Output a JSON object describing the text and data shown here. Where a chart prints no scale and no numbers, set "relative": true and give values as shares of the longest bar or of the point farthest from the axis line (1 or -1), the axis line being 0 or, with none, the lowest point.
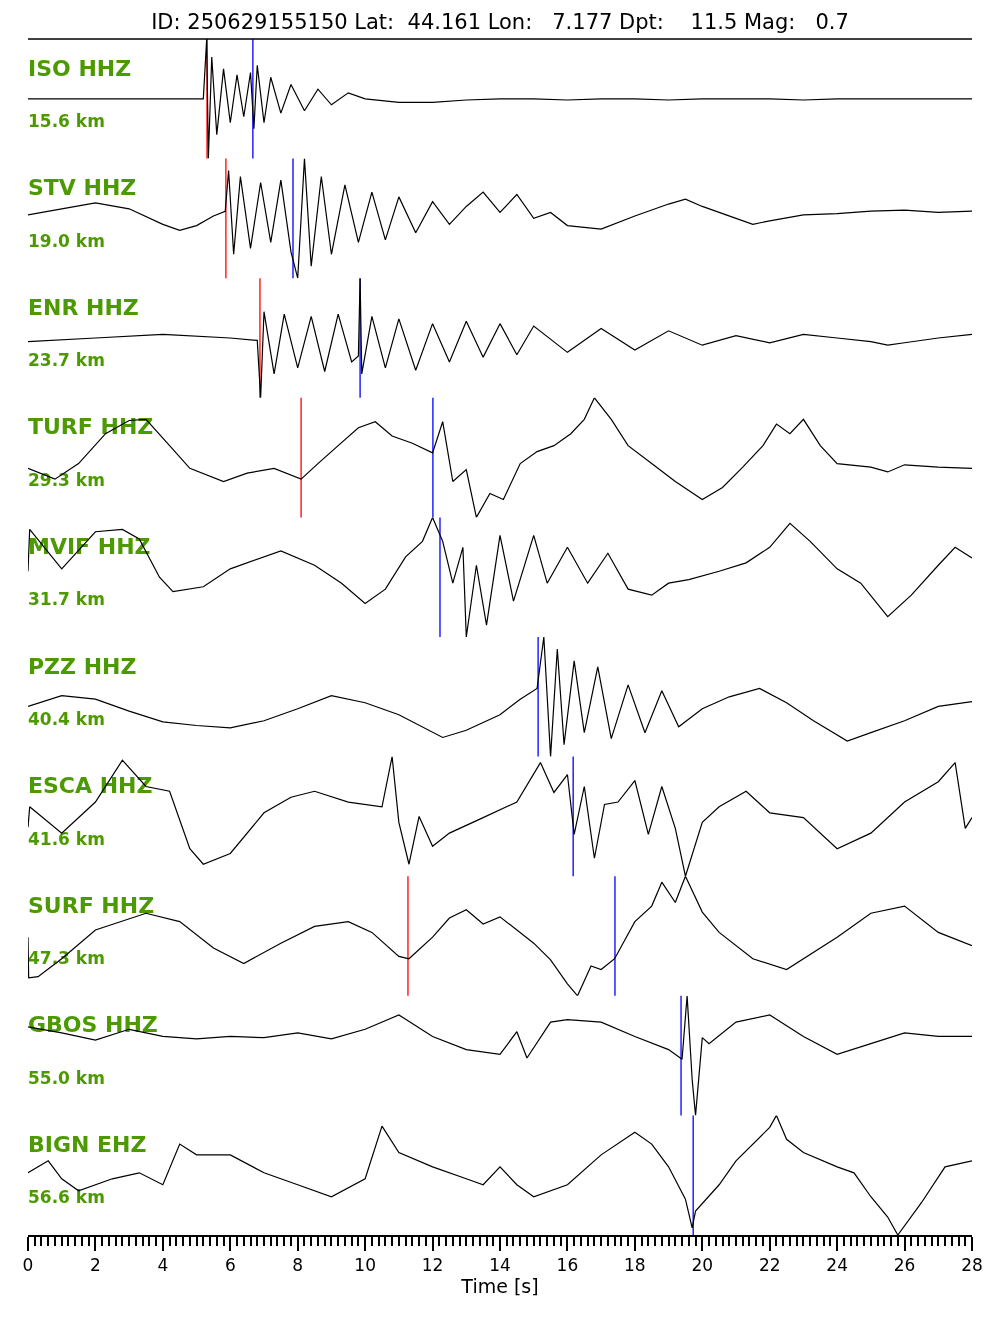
{
  "chart_data": [
    {
      "type": "line",
      "relative": true,
      "title": "ID: 250629155150 Lat:  44.161 Lon:   7.177 Dpt:    11.5 Mag:   0.7",
      "annotations": [
        "ISO HHZ",
        "15.6 km"
      ],
      "color": "#000000",
      "xlim": [
        0,
        28
      ],
      "tick_labels": false,
      "x": [
        0,
        1,
        2,
        3,
        4,
        5,
        5.2,
        5.3,
        5.35,
        5.45,
        5.6,
        5.8,
        6.0,
        6.2,
        6.4,
        6.6,
        6.7,
        6.8,
        7.0,
        7.2,
        7.5,
        7.8,
        8.2,
        8.6,
        9,
        9.5,
        10,
        11,
        12,
        13,
        14,
        15,
        16,
        17,
        18,
        19,
        20,
        21,
        22,
        23,
        24,
        25,
        26,
        27,
        28
      ],
      "values": [
        0.5,
        0.5,
        0.5,
        0.5,
        0.5,
        0.5,
        0.5,
        1.0,
        0,
        0.85,
        0.2,
        0.75,
        0.3,
        0.7,
        0.35,
        0.72,
        0.25,
        0.78,
        0.3,
        0.68,
        0.38,
        0.62,
        0.4,
        0.58,
        0.45,
        0.55,
        0.5,
        0.47,
        0.47,
        0.49,
        0.5,
        0.5,
        0.49,
        0.5,
        0.5,
        0.49,
        0.5,
        0.5,
        0.5,
        0.49,
        0.5,
        0.5,
        0.5,
        0.5,
        0.5
      ],
      "ref_lines": [
        {
          "axis": "x",
          "value": 5.31,
          "color": "#ff0000"
        },
        {
          "axis": "x",
          "value": 6.67,
          "color": "#0000ff"
        }
      ]
    },
    {
      "type": "line",
      "relative": true,
      "annotations": [
        "STV HHZ",
        "19.0 km"
      ],
      "color": "#000000",
      "xlim": [
        0,
        28
      ],
      "tick_labels": false,
      "x": [
        0,
        1,
        2,
        3,
        4,
        4.5,
        5,
        5.5,
        5.85,
        5.95,
        6.1,
        6.3,
        6.6,
        6.9,
        7.2,
        7.5,
        7.8,
        8.0,
        8.2,
        8.4,
        8.7,
        9.0,
        9.4,
        9.8,
        10.2,
        10.6,
        11,
        11.5,
        12,
        12.5,
        13,
        13.5,
        14,
        14.5,
        15,
        15.5,
        16,
        17,
        18,
        19,
        19.5,
        20,
        21,
        21.5,
        22,
        23,
        24,
        25,
        26,
        27,
        28
      ],
      "values": [
        0.53,
        0.58,
        0.63,
        0.58,
        0.45,
        0.4,
        0.44,
        0.52,
        0.56,
        0.9,
        0.2,
        0.85,
        0.25,
        0.8,
        0.3,
        0.82,
        0.22,
        0,
        1,
        0.1,
        0.85,
        0.2,
        0.78,
        0.3,
        0.72,
        0.32,
        0.68,
        0.38,
        0.64,
        0.45,
        0.6,
        0.72,
        0.55,
        0.7,
        0.5,
        0.55,
        0.44,
        0.41,
        0.52,
        0.62,
        0.66,
        0.6,
        0.5,
        0.45,
        0.48,
        0.53,
        0.54,
        0.56,
        0.57,
        0.55,
        0.56
      ],
      "ref_lines": [
        {
          "axis": "x",
          "value": 5.87,
          "color": "#ff0000"
        },
        {
          "axis": "x",
          "value": 7.86,
          "color": "#0000ff"
        }
      ]
    },
    {
      "type": "line",
      "relative": true,
      "annotations": [
        "ENR HHZ",
        "23.7 km"
      ],
      "color": "#000000",
      "xlim": [
        0,
        28
      ],
      "tick_labels": false,
      "x": [
        0,
        2,
        4,
        6,
        6.8,
        6.9,
        7.0,
        7.3,
        7.6,
        8,
        8.4,
        8.8,
        9.2,
        9.6,
        9.8,
        9.85,
        9.9,
        10.2,
        10.6,
        11,
        11.5,
        12,
        12.5,
        13,
        13.5,
        14,
        14.5,
        15,
        16,
        17,
        18,
        19,
        20,
        21,
        22,
        23,
        24,
        25,
        25.5,
        26,
        27,
        28
      ],
      "values": [
        0.47,
        0.5,
        0.53,
        0.5,
        0.48,
        0,
        0.72,
        0.2,
        0.7,
        0.25,
        0.68,
        0.22,
        0.7,
        0.3,
        0.35,
        1,
        0.2,
        0.68,
        0.25,
        0.66,
        0.23,
        0.62,
        0.3,
        0.64,
        0.34,
        0.62,
        0.36,
        0.6,
        0.38,
        0.58,
        0.4,
        0.56,
        0.44,
        0.52,
        0.46,
        0.53,
        0.5,
        0.47,
        0.44,
        0.46,
        0.5,
        0.53
      ],
      "ref_lines": [
        {
          "axis": "x",
          "value": 6.88,
          "color": "#ff0000"
        },
        {
          "axis": "x",
          "value": 9.85,
          "color": "#0000ff"
        }
      ]
    },
    {
      "type": "line",
      "relative": true,
      "annotations": [
        "TURF HHZ",
        "29.3 km"
      ],
      "color": "#000000",
      "xlim": [
        0,
        28
      ],
      "tick_labels": false,
      "x": [
        0,
        0.8,
        1.5,
        2.3,
        3,
        3.5,
        4.2,
        4.8,
        5.8,
        6.5,
        7.3,
        8.1,
        8.6,
        9.2,
        9.8,
        10.3,
        10.8,
        11.4,
        12,
        12.3,
        12.6,
        13,
        13.3,
        13.7,
        14.1,
        14.6,
        15.1,
        15.6,
        16.1,
        16.5,
        16.8,
        17.3,
        17.8,
        18.5,
        19.2,
        20,
        20.6,
        21.2,
        21.8,
        22.2,
        22.6,
        23,
        23.5,
        24,
        25,
        25.5,
        26,
        27,
        28
      ],
      "values": [
        0.41,
        0.32,
        0.45,
        0.7,
        0.81,
        0.82,
        0.6,
        0.41,
        0.3,
        0.37,
        0.41,
        0.32,
        0.45,
        0.6,
        0.75,
        0.8,
        0.68,
        0.62,
        0.54,
        0.8,
        0.3,
        0.4,
        0,
        0.2,
        0.15,
        0.45,
        0.55,
        0.6,
        0.7,
        0.82,
        1,
        0.82,
        0.6,
        0.45,
        0.3,
        0.15,
        0.25,
        0.42,
        0.6,
        0.78,
        0.7,
        0.82,
        0.6,
        0.45,
        0.42,
        0.38,
        0.44,
        0.42,
        0.41
      ],
      "ref_lines": [
        {
          "axis": "x",
          "value": 8.1,
          "color": "#ff0000"
        },
        {
          "axis": "x",
          "value": 12.01,
          "color": "#0000ff"
        }
      ]
    },
    {
      "type": "line",
      "relative": true,
      "annotations": [
        "MVIF HHZ",
        "31.7 km"
      ],
      "color": "#000000",
      "xlim": [
        0,
        28
      ],
      "tick_labels": false,
      "x": [
        0,
        0.05,
        1,
        2,
        2.8,
        3.3,
        3.9,
        4.3,
        5.2,
        6,
        7.5,
        8.5,
        9.3,
        10,
        10.6,
        11.2,
        11.7,
        12.0,
        12.3,
        12.6,
        12.9,
        13.0,
        13.3,
        13.6,
        14,
        14.4,
        15,
        15.4,
        16,
        16.6,
        17.2,
        17.8,
        18.5,
        19,
        19.6,
        20.5,
        21.3,
        22,
        22.6,
        23.2,
        24,
        24.7,
        25.5,
        26.2,
        27,
        27.5,
        28
      ],
      "values": [
        0.55,
        0.9,
        0.57,
        0.88,
        0.9,
        0.82,
        0.5,
        0.38,
        0.42,
        0.57,
        0.72,
        0.6,
        0.45,
        0.28,
        0.4,
        0.67,
        0.8,
        1,
        0.8,
        0.45,
        0.75,
        0,
        0.6,
        0.1,
        0.85,
        0.3,
        0.85,
        0.45,
        0.75,
        0.45,
        0.7,
        0.4,
        0.35,
        0.45,
        0.48,
        0.55,
        0.62,
        0.75,
        0.95,
        0.8,
        0.57,
        0.45,
        0.17,
        0.35,
        0.6,
        0.75,
        0.66
      ],
      "ref_lines": [
        {
          "axis": "x",
          "value": 12.22,
          "color": "#0000ff"
        }
      ]
    },
    {
      "type": "line",
      "relative": true,
      "annotations": [
        "PZZ HHZ",
        "40.4 km"
      ],
      "color": "#000000",
      "xlim": [
        0,
        28
      ],
      "tick_labels": false,
      "x": [
        0,
        1,
        2,
        3,
        4,
        5,
        6,
        7,
        8,
        9,
        10,
        11,
        12.3,
        13,
        14,
        14.6,
        15.1,
        15.3,
        15.5,
        15.7,
        15.9,
        16.2,
        16.5,
        16.9,
        17.3,
        17.8,
        18.3,
        18.8,
        19.3,
        20,
        20.8,
        21.7,
        22.5,
        23.3,
        24.3,
        25,
        26,
        27,
        28
      ],
      "values": [
        0.42,
        0.51,
        0.48,
        0.38,
        0.29,
        0.26,
        0.24,
        0.3,
        0.4,
        0.51,
        0.45,
        0.35,
        0.16,
        0.22,
        0.35,
        0.48,
        0.57,
        1,
        0,
        0.9,
        0.1,
        0.8,
        0.2,
        0.75,
        0.15,
        0.6,
        0.2,
        0.55,
        0.25,
        0.4,
        0.5,
        0.57,
        0.45,
        0.3,
        0.13,
        0.2,
        0.3,
        0.42,
        0.46
      ],
      "ref_lines": [
        {
          "axis": "x",
          "value": 15.13,
          "color": "#0000ff"
        }
      ]
    },
    {
      "type": "line",
      "relative": true,
      "annotations": [
        "ESCA HHZ",
        "41.6 km"
      ],
      "color": "#000000",
      "xlim": [
        0,
        28
      ],
      "tick_labels": false,
      "x": [
        0,
        0.05,
        1,
        2,
        2.8,
        3.5,
        4.2,
        4.8,
        5.2,
        6,
        7,
        7.8,
        8.5,
        9.5,
        10.5,
        10.8,
        11,
        11.3,
        11.6,
        12,
        12.5,
        13.5,
        14.5,
        15.2,
        15.6,
        16,
        16.2,
        16.5,
        16.8,
        17.1,
        17.5,
        18,
        18.4,
        18.8,
        19.2,
        19.5,
        20,
        20.5,
        21.3,
        22,
        23,
        24,
        25,
        26,
        27,
        27.5,
        27.8,
        28
      ],
      "values": [
        0.41,
        0.58,
        0.36,
        0.62,
        0.97,
        0.75,
        0.71,
        0.23,
        0.1,
        0.19,
        0.53,
        0.66,
        0.71,
        0.62,
        0.58,
        1,
        0.45,
        0.1,
        0.5,
        0.25,
        0.36,
        0.49,
        0.62,
        0.95,
        0.7,
        0.85,
        0.35,
        0.75,
        0.15,
        0.6,
        0.62,
        0.8,
        0.35,
        0.75,
        0.4,
        0,
        0.45,
        0.58,
        0.71,
        0.53,
        0.49,
        0.23,
        0.36,
        0.62,
        0.79,
        0.95,
        0.4,
        0.49
      ],
      "ref_lines": [
        {
          "axis": "x",
          "value": 16.17,
          "color": "#0000ff"
        }
      ]
    },
    {
      "type": "line",
      "relative": true,
      "annotations": [
        "SURF HHZ",
        "47.3 km"
      ],
      "color": "#000000",
      "xlim": [
        0,
        28
      ],
      "tick_labels": false,
      "x": [
        0,
        0.02,
        0.3,
        1,
        2,
        3.5,
        4.5,
        5.5,
        6.4,
        7.5,
        8.5,
        9.5,
        10.2,
        11,
        11.3,
        12,
        12.5,
        13,
        13.5,
        14,
        15,
        15.5,
        16,
        16.3,
        16.7,
        17,
        17.4,
        18,
        18.5,
        18.8,
        19.2,
        19.5,
        20,
        20.5,
        21.5,
        22.5,
        24,
        25,
        26,
        27,
        28
      ],
      "values": [
        0.49,
        0.15,
        0.16,
        0.31,
        0.55,
        0.69,
        0.62,
        0.4,
        0.27,
        0.44,
        0.58,
        0.62,
        0.53,
        0.33,
        0.31,
        0.49,
        0.65,
        0.72,
        0.6,
        0.66,
        0.44,
        0.3,
        0.1,
        0,
        0.25,
        0.22,
        0.31,
        0.62,
        0.75,
        0.95,
        0.78,
        1,
        0.7,
        0.53,
        0.31,
        0.22,
        0.49,
        0.69,
        0.75,
        0.53,
        0.42
      ],
      "ref_lines": [
        {
          "axis": "x",
          "value": 11.27,
          "color": "#ff0000"
        },
        {
          "axis": "x",
          "value": 17.41,
          "color": "#0000ff"
        }
      ]
    },
    {
      "type": "line",
      "relative": true,
      "annotations": [
        "GBOS HHZ",
        "55.0 km"
      ],
      "color": "#000000",
      "xlim": [
        0,
        28
      ],
      "tick_labels": false,
      "x": [
        0,
        1,
        2,
        3,
        4,
        5,
        6,
        7,
        8,
        9,
        10,
        11,
        12,
        13,
        14,
        14.5,
        14.8,
        15.5,
        16,
        17,
        18,
        19,
        19.4,
        19.55,
        19.7,
        19.8,
        20.0,
        20.2,
        21,
        22,
        23,
        24,
        25,
        26,
        27,
        28
      ],
      "values": [
        0.74,
        0.69,
        0.63,
        0.72,
        0.66,
        0.64,
        0.66,
        0.65,
        0.69,
        0.64,
        0.72,
        0.84,
        0.66,
        0.55,
        0.51,
        0.7,
        0.48,
        0.78,
        0.8,
        0.78,
        0.66,
        0.55,
        0.47,
        1,
        0.3,
        0,
        0.65,
        0.6,
        0.78,
        0.84,
        0.66,
        0.51,
        0.6,
        0.69,
        0.66,
        0.66
      ],
      "ref_lines": [
        {
          "axis": "x",
          "value": 19.37,
          "color": "#0000ff"
        }
      ]
    },
    {
      "type": "line",
      "relative": true,
      "annotations": [
        "BIGN EHZ",
        "56.6 km"
      ],
      "color": "#000000",
      "xlim": [
        0,
        28
      ],
      "tick_labels": "x",
      "xlabel": "Time [s]",
      "x": [
        0,
        0.6,
        1,
        1.5,
        2.5,
        3.3,
        4,
        4.5,
        5,
        6,
        7,
        8,
        9,
        10,
        10.5,
        11,
        12,
        13,
        13.5,
        14,
        14.5,
        15,
        16,
        17,
        18,
        18.5,
        19,
        19.5,
        19.7,
        19.8,
        20.5,
        21,
        22,
        22.2,
        22.5,
        23,
        24,
        24.5,
        25,
        25.5,
        25.8,
        26.5,
        27.2,
        28
      ],
      "values": [
        0.52,
        0.62,
        0.47,
        0.37,
        0.47,
        0.52,
        0.42,
        0.76,
        0.67,
        0.67,
        0.52,
        0.42,
        0.32,
        0.47,
        0.91,
        0.69,
        0.57,
        0.47,
        0.42,
        0.57,
        0.42,
        0.32,
        0.42,
        0.67,
        0.86,
        0.76,
        0.57,
        0.3,
        0.06,
        0.2,
        0.42,
        0.62,
        0.9,
        1,
        0.8,
        0.69,
        0.57,
        0.52,
        0.32,
        0.15,
        0,
        0.27,
        0.57,
        0.62
      ],
      "ref_lines": [
        {
          "axis": "x",
          "value": 19.73,
          "color": "#0000ff"
        }
      ],
      "xticks": [
        0,
        {
          "value": 0.2,
          "label": null
        },
        {
          "value": 0.4,
          "label": null
        },
        {
          "value": 0.6,
          "label": null
        },
        {
          "value": 0.8,
          "label": null
        },
        {
          "value": 1,
          "label": null
        },
        {
          "value": 1.2,
          "label": null
        },
        {
          "value": 1.4,
          "label": null
        },
        {
          "value": 1.6,
          "label": null
        },
        {
          "value": 1.8,
          "label": null
        },
        2,
        {
          "value": 2.2,
          "label": null
        },
        {
          "value": 2.4,
          "label": null
        },
        {
          "value": 2.6,
          "label": null
        },
        {
          "value": 2.8,
          "label": null
        },
        {
          "value": 3,
          "label": null
        },
        {
          "value": 3.2,
          "label": null
        },
        {
          "value": 3.4,
          "label": null
        },
        {
          "value": 3.6,
          "label": null
        },
        {
          "value": 3.8,
          "label": null
        },
        4,
        {
          "value": 4.2,
          "label": null
        },
        {
          "value": 4.4,
          "label": null
        },
        {
          "value": 4.6,
          "label": null
        },
        {
          "value": 4.8,
          "label": null
        },
        {
          "value": 5,
          "label": null
        },
        {
          "value": 5.2,
          "label": null
        },
        {
          "value": 5.4,
          "label": null
        },
        {
          "value": 5.6,
          "label": null
        },
        {
          "value": 5.8,
          "label": null
        },
        6,
        {
          "value": 6.2,
          "label": null
        },
        {
          "value": 6.4,
          "label": null
        },
        {
          "value": 6.6,
          "label": null
        },
        {
          "value": 6.8,
          "label": null
        },
        {
          "value": 7,
          "label": null
        },
        {
          "value": 7.2,
          "label": null
        },
        {
          "value": 7.4,
          "label": null
        },
        {
          "value": 7.6,
          "label": null
        },
        {
          "value": 7.8,
          "label": null
        },
        8,
        {
          "value": 8.2,
          "label": null
        },
        {
          "value": 8.4,
          "label": null
        },
        {
          "value": 8.6,
          "label": null
        },
        {
          "value": 8.8,
          "label": null
        },
        {
          "value": 9,
          "label": null
        },
        {
          "value": 9.2,
          "label": null
        },
        {
          "value": 9.4,
          "label": null
        },
        {
          "value": 9.6,
          "label": null
        },
        {
          "value": 9.8,
          "label": null
        },
        10,
        {
          "value": 10.2,
          "label": null
        },
        {
          "value": 10.4,
          "label": null
        },
        {
          "value": 10.6,
          "label": null
        },
        {
          "value": 10.8,
          "label": null
        },
        {
          "value": 11,
          "label": null
        },
        {
          "value": 11.2,
          "label": null
        },
        {
          "value": 11.4,
          "label": null
        },
        {
          "value": 11.6,
          "label": null
        },
        {
          "value": 11.8,
          "label": null
        },
        12,
        {
          "value": 12.2,
          "label": null
        },
        {
          "value": 12.4,
          "label": null
        },
        {
          "value": 12.6,
          "label": null
        },
        {
          "value": 12.8,
          "label": null
        },
        {
          "value": 13,
          "label": null
        },
        {
          "value": 13.2,
          "label": null
        },
        {
          "value": 13.4,
          "label": null
        },
        {
          "value": 13.6,
          "label": null
        },
        {
          "value": 13.8,
          "label": null
        },
        14,
        {
          "value": 14.2,
          "label": null
        },
        {
          "value": 14.4,
          "label": null
        },
        {
          "value": 14.6,
          "label": null
        },
        {
          "value": 14.8,
          "label": null
        },
        {
          "value": 15,
          "label": null
        },
        {
          "value": 15.2,
          "label": null
        },
        {
          "value": 15.4,
          "label": null
        },
        {
          "value": 15.6,
          "label": null
        },
        {
          "value": 15.8,
          "label": null
        },
        16,
        {
          "value": 16.2,
          "label": null
        },
        {
          "value": 16.4,
          "label": null
        },
        {
          "value": 16.6,
          "label": null
        },
        {
          "value": 16.8,
          "label": null
        },
        {
          "value": 17,
          "label": null
        },
        {
          "value": 17.2,
          "label": null
        },
        {
          "value": 17.4,
          "label": null
        },
        {
          "value": 17.6,
          "label": null
        },
        {
          "value": 17.8,
          "label": null
        },
        18,
        {
          "value": 18.2,
          "label": null
        },
        {
          "value": 18.4,
          "label": null
        },
        {
          "value": 18.6,
          "label": null
        },
        {
          "value": 18.8,
          "label": null
        },
        {
          "value": 19,
          "label": null
        },
        {
          "value": 19.2,
          "label": null
        },
        {
          "value": 19.4,
          "label": null
        },
        {
          "value": 19.6,
          "label": null
        },
        {
          "value": 19.8,
          "label": null
        },
        20,
        {
          "value": 20.2,
          "label": null
        },
        {
          "value": 20.4,
          "label": null
        },
        {
          "value": 20.6,
          "label": null
        },
        {
          "value": 20.8,
          "label": null
        },
        {
          "value": 21,
          "label": null
        },
        {
          "value": 21.2,
          "label": null
        },
        {
          "value": 21.4,
          "label": null
        },
        {
          "value": 21.6,
          "label": null
        },
        {
          "value": 21.8,
          "label": null
        },
        22,
        {
          "value": 22.2,
          "label": null
        },
        {
          "value": 22.4,
          "label": null
        },
        {
          "value": 22.6,
          "label": null
        },
        {
          "value": 22.8,
          "label": null
        },
        {
          "value": 23,
          "label": null
        },
        {
          "value": 23.2,
          "label": null
        },
        {
          "value": 23.4,
          "label": null
        },
        {
          "value": 23.6,
          "label": null
        },
        {
          "value": 23.8,
          "label": null
        },
        24,
        {
          "value": 24.2,
          "label": null
        },
        {
          "value": 24.4,
          "label": null
        },
        {
          "value": 24.6,
          "label": null
        },
        {
          "value": 24.8,
          "label": null
        },
        {
          "value": 25,
          "label": null
        },
        {
          "value": 25.2,
          "label": null
        },
        {
          "value": 25.4,
          "label": null
        },
        {
          "value": 25.6,
          "label": null
        },
        {
          "value": 25.8,
          "label": null
        },
        26,
        {
          "value": 26.2,
          "label": null
        },
        {
          "value": 26.4,
          "label": null
        },
        {
          "value": 26.6,
          "label": null
        },
        {
          "value": 26.8,
          "label": null
        },
        {
          "value": 27,
          "label": null
        },
        {
          "value": 27.2,
          "label": null
        },
        {
          "value": 27.4,
          "label": null
        },
        {
          "value": 27.6,
          "label": null
        },
        {
          "value": 27.8,
          "label": null
        },
        28
      ]
    }
  ]
}
